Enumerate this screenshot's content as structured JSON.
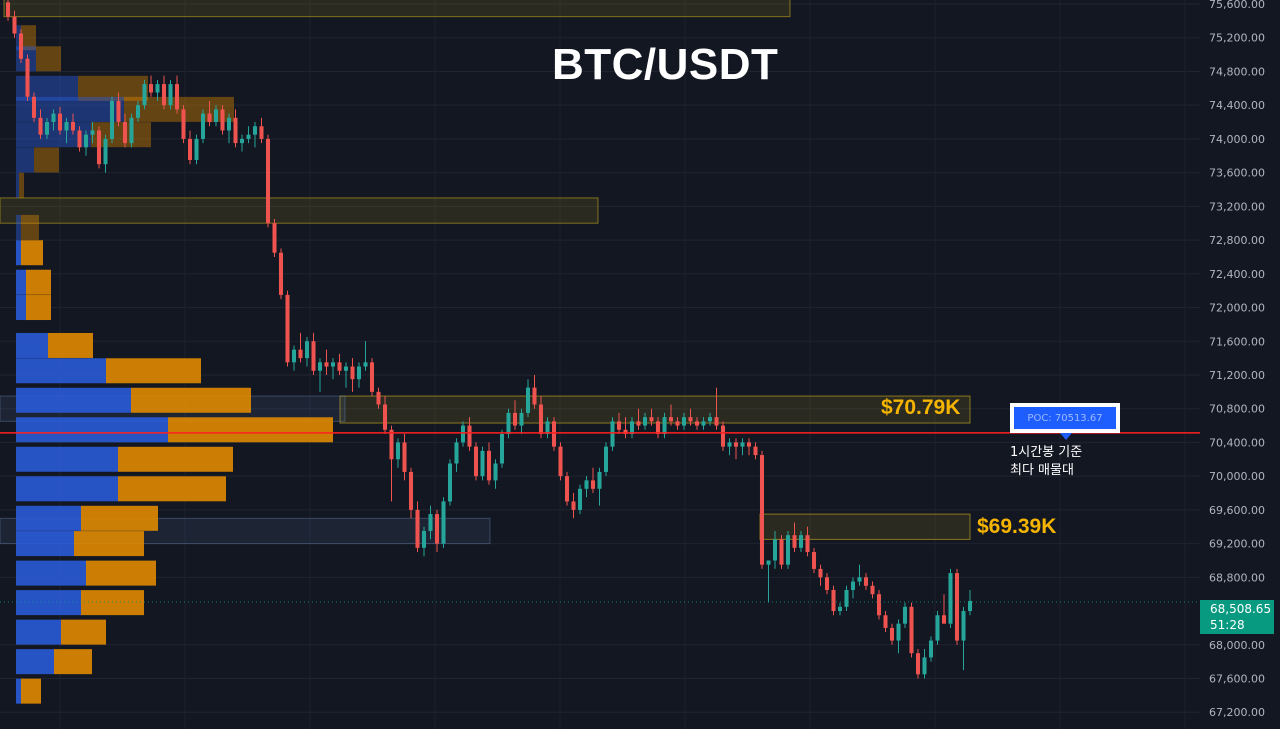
{
  "title": "BTC/USDT",
  "colors": {
    "background": "#131722",
    "up": "#26a69a",
    "down": "#ef5350",
    "volume_buy": "#2a5bd7",
    "volume_sell": "#e08a00",
    "zone": "#d4b21c",
    "poc_line": "#ff2020"
  },
  "chart_data": {
    "type": "candlestick",
    "ylim": [
      67100,
      75700
    ],
    "y_ticks": [
      "75,600.00",
      "75,200.00",
      "74,800.00",
      "74,400.00",
      "74,000.00",
      "73,600.00",
      "73,200.00",
      "72,800.00",
      "72,400.00",
      "72,000.00",
      "71,600.00",
      "71,200.00",
      "70,800.00",
      "70,400.00",
      "70,000.00",
      "69,600.00",
      "69,200.00",
      "68,800.00",
      "68,000.00",
      "67,600.00",
      "67,200.00"
    ],
    "y_tick_values": [
      75600,
      75200,
      74800,
      74400,
      74000,
      73600,
      73200,
      72800,
      72400,
      72000,
      71600,
      71200,
      70800,
      70400,
      70000,
      69600,
      69200,
      68800,
      68000,
      67600,
      67200
    ],
    "last_price": "68,508.65",
    "last_price_value": 68508.65,
    "countdown": "51:28",
    "poc_value": 70513.67,
    "annotations": [
      {
        "label": "$70.79K",
        "low": 70630,
        "high": 70950
      },
      {
        "label": "$69.39K",
        "low": 69250,
        "high": 69550
      }
    ],
    "other_zones": [
      {
        "low": 75450,
        "high": 75700
      },
      {
        "low": 73000,
        "high": 73300
      }
    ],
    "highlight_bands": [
      {
        "low": 70650,
        "high": 70950
      },
      {
        "low": 69200,
        "high": 69500
      }
    ],
    "candles": [
      [
        75620,
        75690,
        75400,
        75450
      ],
      [
        75450,
        75520,
        75200,
        75250
      ],
      [
        75250,
        75300,
        74900,
        74950
      ],
      [
        74950,
        75000,
        74450,
        74500
      ],
      [
        74500,
        74550,
        74200,
        74250
      ],
      [
        74250,
        74350,
        74000,
        74050
      ],
      [
        74050,
        74250,
        74000,
        74200
      ],
      [
        74200,
        74350,
        74100,
        74300
      ],
      [
        74300,
        74380,
        74050,
        74100
      ],
      [
        74100,
        74250,
        73950,
        74200
      ],
      [
        74200,
        74300,
        74050,
        74100
      ],
      [
        74100,
        74150,
        73850,
        73900
      ],
      [
        73900,
        74100,
        73800,
        74050
      ],
      [
        74050,
        74200,
        73950,
        74100
      ],
      [
        74100,
        74150,
        73650,
        73700
      ],
      [
        73700,
        74050,
        73600,
        74000
      ],
      [
        74000,
        74500,
        73950,
        74450
      ],
      [
        74450,
        74550,
        74150,
        74200
      ],
      [
        74200,
        74300,
        73900,
        73950
      ],
      [
        73950,
        74300,
        73900,
        74250
      ],
      [
        74250,
        74450,
        74200,
        74400
      ],
      [
        74400,
        74700,
        74350,
        74650
      ],
      [
        74650,
        74750,
        74500,
        74550
      ],
      [
        74550,
        74700,
        74450,
        74650
      ],
      [
        74650,
        74750,
        74350,
        74400
      ],
      [
        74400,
        74700,
        74350,
        74650
      ],
      [
        74650,
        74750,
        74300,
        74350
      ],
      [
        74350,
        74400,
        73950,
        74000
      ],
      [
        74000,
        74100,
        73700,
        73750
      ],
      [
        73750,
        74050,
        73700,
        74000
      ],
      [
        74000,
        74350,
        73950,
        74300
      ],
      [
        74300,
        74450,
        74150,
        74200
      ],
      [
        74200,
        74400,
        74150,
        74350
      ],
      [
        74350,
        74400,
        74050,
        74100
      ],
      [
        74100,
        74300,
        73950,
        74250
      ],
      [
        74250,
        74350,
        73900,
        73950
      ],
      [
        73950,
        74050,
        73850,
        74000
      ],
      [
        74000,
        74150,
        73950,
        74050
      ],
      [
        74050,
        74200,
        73900,
        74150
      ],
      [
        74150,
        74250,
        73950,
        74000
      ],
      [
        74000,
        74050,
        72950,
        73000
      ],
      [
        73000,
        73050,
        72600,
        72650
      ],
      [
        72650,
        72700,
        72100,
        72150
      ],
      [
        72150,
        72200,
        71300,
        71350
      ],
      [
        71350,
        71550,
        71250,
        71500
      ],
      [
        71500,
        71700,
        71350,
        71400
      ],
      [
        71400,
        71650,
        71300,
        71600
      ],
      [
        71600,
        71700,
        71200,
        71250
      ],
      [
        71250,
        71400,
        71000,
        71350
      ],
      [
        71350,
        71500,
        71200,
        71300
      ],
      [
        71300,
        71400,
        71150,
        71350
      ],
      [
        71350,
        71450,
        71200,
        71250
      ],
      [
        71250,
        71350,
        71050,
        71300
      ],
      [
        71300,
        71400,
        71000,
        71150
      ],
      [
        71150,
        71350,
        71050,
        71300
      ],
      [
        71300,
        71600,
        71250,
        71350
      ],
      [
        71350,
        71400,
        70950,
        71000
      ],
      [
        71000,
        71050,
        70800,
        70850
      ],
      [
        70850,
        70950,
        70500,
        70550
      ],
      [
        70550,
        70600,
        69700,
        70200
      ],
      [
        70200,
        70450,
        70100,
        70400
      ],
      [
        70400,
        70500,
        69950,
        70050
      ],
      [
        70050,
        70100,
        69500,
        69600
      ],
      [
        69600,
        69700,
        69100,
        69150
      ],
      [
        69150,
        69400,
        69050,
        69350
      ],
      [
        69350,
        69650,
        69250,
        69550
      ],
      [
        69550,
        69600,
        69100,
        69200
      ],
      [
        69200,
        69750,
        69150,
        69700
      ],
      [
        69700,
        70200,
        69650,
        70150
      ],
      [
        70150,
        70450,
        70050,
        70400
      ],
      [
        70400,
        70650,
        70350,
        70600
      ],
      [
        70600,
        70700,
        70300,
        70350
      ],
      [
        70350,
        70400,
        69950,
        70000
      ],
      [
        70000,
        70350,
        69950,
        70300
      ],
      [
        70300,
        70400,
        69900,
        69950
      ],
      [
        69950,
        70200,
        69850,
        70150
      ],
      [
        70150,
        70550,
        70100,
        70500
      ],
      [
        70500,
        70800,
        70450,
        70750
      ],
      [
        70750,
        70900,
        70550,
        70600
      ],
      [
        70600,
        70800,
        70500,
        70750
      ],
      [
        70750,
        71150,
        70700,
        71050
      ],
      [
        71050,
        71200,
        70800,
        70850
      ],
      [
        70850,
        70950,
        70450,
        70500
      ],
      [
        70500,
        70700,
        70450,
        70650
      ],
      [
        70650,
        70700,
        70300,
        70350
      ],
      [
        70350,
        70400,
        69950,
        70000
      ],
      [
        70000,
        70050,
        69650,
        69700
      ],
      [
        69700,
        69800,
        69500,
        69600
      ],
      [
        69600,
        69900,
        69550,
        69850
      ],
      [
        69850,
        70000,
        69750,
        69950
      ],
      [
        69950,
        70100,
        69800,
        69850
      ],
      [
        69850,
        70100,
        69650,
        70050
      ],
      [
        70050,
        70400,
        70000,
        70350
      ],
      [
        70350,
        70700,
        70300,
        70650
      ],
      [
        70650,
        70750,
        70500,
        70550
      ],
      [
        70550,
        70700,
        70450,
        70500
      ],
      [
        70500,
        70700,
        70450,
        70650
      ],
      [
        70650,
        70800,
        70550,
        70600
      ],
      [
        70600,
        70750,
        70550,
        70700
      ],
      [
        70700,
        70800,
        70600,
        70650
      ],
      [
        70650,
        70700,
        70450,
        70500
      ],
      [
        70500,
        70750,
        70450,
        70700
      ],
      [
        70700,
        70850,
        70600,
        70650
      ],
      [
        70650,
        70700,
        70550,
        70600
      ],
      [
        70600,
        70750,
        70550,
        70700
      ],
      [
        70700,
        70800,
        70600,
        70650
      ],
      [
        70650,
        70700,
        70550,
        70600
      ],
      [
        70600,
        70700,
        70550,
        70650
      ],
      [
        70650,
        70750,
        70600,
        70700
      ],
      [
        70700,
        71050,
        70550,
        70600
      ],
      [
        70600,
        70650,
        70300,
        70350
      ],
      [
        70350,
        70450,
        70250,
        70400
      ],
      [
        70400,
        70450,
        70200,
        70350
      ],
      [
        70350,
        70450,
        70250,
        70400
      ],
      [
        70400,
        70450,
        70250,
        70350
      ],
      [
        70350,
        70400,
        70200,
        70250
      ],
      [
        70250,
        70300,
        68900,
        68950
      ],
      [
        68950,
        69000,
        68500,
        69000
      ],
      [
        69000,
        69350,
        68900,
        69250
      ],
      [
        69250,
        69300,
        68900,
        68950
      ],
      [
        68950,
        69350,
        68900,
        69300
      ],
      [
        69300,
        69450,
        69100,
        69150
      ],
      [
        69150,
        69350,
        69100,
        69300
      ],
      [
        69300,
        69400,
        69050,
        69100
      ],
      [
        69100,
        69150,
        68850,
        68900
      ],
      [
        68900,
        68950,
        68700,
        68800
      ],
      [
        68800,
        68850,
        68600,
        68650
      ],
      [
        68650,
        68700,
        68350,
        68400
      ],
      [
        68400,
        68500,
        68350,
        68450
      ],
      [
        68450,
        68700,
        68400,
        68650
      ],
      [
        68650,
        68800,
        68550,
        68750
      ],
      [
        68750,
        68950,
        68700,
        68800
      ],
      [
        68800,
        68850,
        68650,
        68700
      ],
      [
        68700,
        68750,
        68550,
        68600
      ],
      [
        68600,
        68650,
        68300,
        68350
      ],
      [
        68350,
        68400,
        68150,
        68200
      ],
      [
        68200,
        68250,
        68000,
        68050
      ],
      [
        68050,
        68300,
        67900,
        68250
      ],
      [
        68250,
        68500,
        68200,
        68450
      ],
      [
        68450,
        68500,
        67850,
        67900
      ],
      [
        67900,
        67950,
        67600,
        67650
      ],
      [
        67650,
        67950,
        67600,
        67850
      ],
      [
        67850,
        68100,
        67800,
        68050
      ],
      [
        68050,
        68400,
        68000,
        68350
      ],
      [
        68350,
        68600,
        68300,
        68250
      ],
      [
        68250,
        68900,
        68200,
        68850
      ],
      [
        68850,
        68900,
        68000,
        68050
      ],
      [
        68050,
        68450,
        67700,
        68400
      ],
      [
        68400,
        68650,
        68350,
        68520
      ]
    ],
    "volume_profile": [
      {
        "price": 75200,
        "buy": 5,
        "sell": 15
      },
      {
        "price": 74950,
        "buy": 20,
        "sell": 25
      },
      {
        "price": 74600,
        "buy": 62,
        "sell": 70
      },
      {
        "price": 74350,
        "buy": 108,
        "sell": 110
      },
      {
        "price": 74050,
        "buy": 75,
        "sell": 60
      },
      {
        "price": 73750,
        "buy": 18,
        "sell": 25
      },
      {
        "price": 73450,
        "buy": 3,
        "sell": 5
      },
      {
        "price": 72950,
        "buy": 5,
        "sell": 18
      },
      {
        "price": 72650,
        "buy": 5,
        "sell": 22
      },
      {
        "price": 72300,
        "buy": 10,
        "sell": 25
      },
      {
        "price": 72000,
        "buy": 10,
        "sell": 25
      },
      {
        "price": 71550,
        "buy": 32,
        "sell": 45
      },
      {
        "price": 71250,
        "buy": 90,
        "sell": 95
      },
      {
        "price": 70900,
        "buy": 115,
        "sell": 120
      },
      {
        "price": 70550,
        "buy": 152,
        "sell": 165
      },
      {
        "price": 70200,
        "buy": 102,
        "sell": 115
      },
      {
        "price": 69850,
        "buy": 102,
        "sell": 108
      },
      {
        "price": 69500,
        "buy": 65,
        "sell": 77
      },
      {
        "price": 69200,
        "buy": 58,
        "sell": 70
      },
      {
        "price": 68850,
        "buy": 70,
        "sell": 70
      },
      {
        "price": 68500,
        "buy": 65,
        "sell": 63
      },
      {
        "price": 68150,
        "buy": 45,
        "sell": 45
      },
      {
        "price": 67800,
        "buy": 38,
        "sell": 38
      },
      {
        "price": 67450,
        "buy": 5,
        "sell": 20
      }
    ]
  },
  "labels": {
    "poc": "POC: 70513.67",
    "poc_note_line1": "1시간봉 기준",
    "poc_note_line2": "최다 매물대"
  }
}
